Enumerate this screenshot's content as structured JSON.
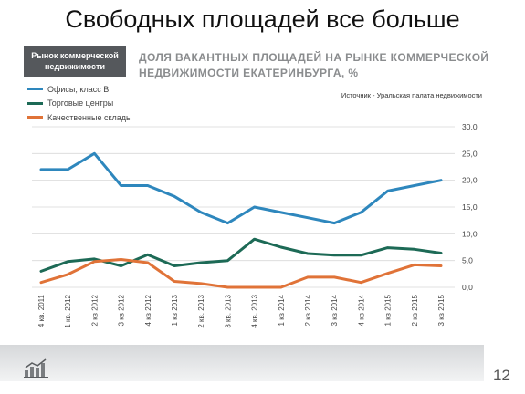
{
  "slide": {
    "title": "Свободных площадей все больше",
    "page_number": "12"
  },
  "badge": {
    "line1": "Рынок коммерческой",
    "line2": "недвижимости"
  },
  "source_note": "Источник - Уральская палата недвижимости",
  "colors": {
    "offices": "#2e87bd",
    "malls": "#1d6a56",
    "warehouses": "#e07338",
    "grid": "#d9d9d9",
    "badge_bg": "#55585c"
  },
  "chart_data": {
    "type": "line",
    "title": "ДОЛЯ ВАКАНТНЫХ ПЛОЩАДЕЙ НА РЫНКЕ КОММЕРЧЕСКОЙ НЕДВИЖИМОСТИ ЕКАТЕРИНБУРГА, %",
    "xlabel": "",
    "ylabel": "",
    "ylim": [
      0,
      30
    ],
    "yticks": [
      "0,0",
      "5,0",
      "10,0",
      "15,0",
      "20,0",
      "25,0",
      "30,0"
    ],
    "grid": true,
    "legend_position": "top-left",
    "categories": [
      "4 кв. 2011",
      "1 кв. 2012",
      "2 кв 2012",
      "3 кв 2012",
      "4 кв 2012",
      "1 кв 2013",
      "2 кв. 2013",
      "3 кв. 2013",
      "4 кв. 2013",
      "1 кв 2014",
      "2 кв 2014",
      "3 кв 2014",
      "4 кв 2014",
      "1 кв 2015",
      "2 кв 2015",
      "3 кв 2015"
    ],
    "series": [
      {
        "name": "Офисы, класс В",
        "values": [
          22,
          22,
          25,
          19,
          19,
          17,
          14,
          12,
          15,
          14,
          13,
          12,
          14,
          18,
          19,
          20
        ]
      },
      {
        "name": "Торговые центры",
        "values": [
          3,
          4.8,
          5.3,
          4,
          6.1,
          4,
          4.6,
          5,
          9,
          7.5,
          6.3,
          6,
          6,
          7.4,
          7.1,
          6.4
        ]
      },
      {
        "name": "Качественные склады",
        "values": [
          0.9,
          2.4,
          4.8,
          5.2,
          4.6,
          1.1,
          0.7,
          0,
          0,
          0,
          1.9,
          1.9,
          0.9,
          2.6,
          4.2,
          4.0
        ]
      }
    ]
  }
}
